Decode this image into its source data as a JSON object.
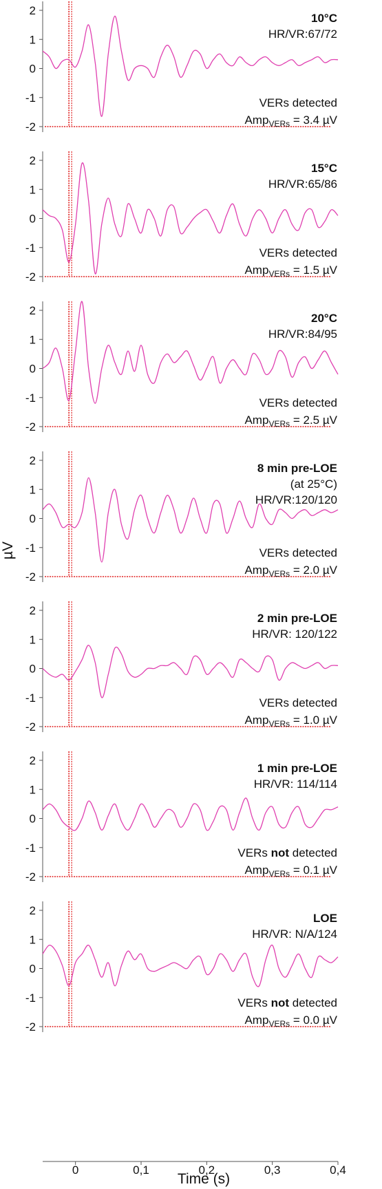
{
  "figure": {
    "ylabel": "µV",
    "xlabel": "Time (s)",
    "x_ticks": [
      "0",
      "0,1",
      "0,2",
      "0,3",
      "0,4"
    ],
    "y_ticks": [
      "2",
      "1",
      "0",
      "-1",
      "-2"
    ],
    "colors": {
      "trace": "#e040b0",
      "stimulus": "#e02020",
      "axis": "#555555",
      "text": "#111111"
    }
  },
  "chart_data": [
    {
      "type": "line",
      "title": "10°C",
      "annotations": {
        "lines": [
          {
            "segments": [
              {
                "text": "10°C",
                "bold": true
              }
            ]
          },
          {
            "segments": [
              {
                "text": "HR/VR:67/72"
              }
            ]
          }
        ],
        "detection": [
          {
            "text": "VERs"
          },
          {
            "text": " detected"
          }
        ],
        "amp": {
          "prefix": "Amp",
          "sub": "VERs",
          "value": " = 3.4 µV"
        }
      },
      "xlim": [
        -0.05,
        0.4
      ],
      "ylim": [
        -2,
        2
      ],
      "stimulus": {
        "x": -0.01,
        "level": -2
      },
      "series": [
        {
          "x": [
            -0.05,
            -0.04,
            -0.03,
            -0.02,
            -0.01,
            0.0,
            0.01,
            0.02,
            0.03,
            0.04,
            0.05,
            0.06,
            0.07,
            0.08,
            0.09,
            0.1,
            0.11,
            0.12,
            0.13,
            0.14,
            0.15,
            0.16,
            0.17,
            0.18,
            0.19,
            0.2,
            0.21,
            0.22,
            0.23,
            0.24,
            0.25,
            0.26,
            0.27,
            0.28,
            0.29,
            0.3,
            0.31,
            0.32,
            0.33,
            0.34,
            0.35,
            0.36,
            0.37,
            0.38,
            0.39,
            0.4
          ],
          "values": [
            0.6,
            0.4,
            0.0,
            0.25,
            0.3,
            0.05,
            0.6,
            1.5,
            0.2,
            -1.65,
            0.5,
            1.8,
            0.6,
            -0.4,
            0.0,
            0.1,
            0.0,
            -0.3,
            0.4,
            0.8,
            0.4,
            -0.3,
            0.1,
            0.6,
            0.5,
            0.0,
            0.3,
            0.5,
            0.2,
            0.1,
            0.4,
            0.2,
            0.1,
            0.3,
            0.4,
            0.2,
            0.1,
            0.2,
            0.3,
            0.1,
            0.2,
            0.3,
            0.4,
            0.2,
            0.3,
            0.3
          ]
        }
      ]
    },
    {
      "type": "line",
      "title": "15°C",
      "annotations": {
        "lines": [
          {
            "segments": [
              {
                "text": "15°C",
                "bold": true
              }
            ]
          },
          {
            "segments": [
              {
                "text": "HR/VR:65/86"
              }
            ]
          }
        ],
        "detection": [
          {
            "text": "VERs"
          },
          {
            "text": " detected"
          }
        ],
        "amp": {
          "prefix": "Amp",
          "sub": "VERs",
          "value": " = 1.5 µV"
        }
      },
      "xlim": [
        -0.05,
        0.4
      ],
      "ylim": [
        -2,
        2
      ],
      "stimulus": {
        "x": -0.01,
        "level": -2
      },
      "series": [
        {
          "x": [
            -0.05,
            -0.04,
            -0.03,
            -0.02,
            -0.01,
            0.0,
            0.01,
            0.02,
            0.03,
            0.04,
            0.05,
            0.06,
            0.07,
            0.08,
            0.09,
            0.1,
            0.11,
            0.12,
            0.13,
            0.14,
            0.15,
            0.16,
            0.17,
            0.18,
            0.19,
            0.2,
            0.21,
            0.22,
            0.23,
            0.24,
            0.25,
            0.26,
            0.27,
            0.28,
            0.29,
            0.3,
            0.31,
            0.32,
            0.33,
            0.34,
            0.35,
            0.36,
            0.37,
            0.38,
            0.39,
            0.4
          ],
          "values": [
            0.3,
            0.1,
            0.0,
            -0.4,
            -1.5,
            -0.2,
            1.9,
            0.6,
            -1.9,
            -0.2,
            0.7,
            -0.2,
            -0.6,
            0.5,
            0.0,
            -0.5,
            0.3,
            0.0,
            -0.6,
            0.3,
            0.4,
            -0.5,
            -0.3,
            0.0,
            0.2,
            0.3,
            -0.1,
            -0.5,
            0.1,
            0.5,
            -0.2,
            -0.6,
            0.0,
            0.3,
            0.0,
            -0.5,
            0.0,
            0.3,
            -0.2,
            -0.4,
            0.2,
            0.3,
            -0.3,
            -0.1,
            0.3,
            0.1
          ]
        }
      ]
    },
    {
      "type": "line",
      "title": "20°C",
      "annotations": {
        "lines": [
          {
            "segments": [
              {
                "text": "20°C",
                "bold": true
              }
            ]
          },
          {
            "segments": [
              {
                "text": "HR/VR:84/95"
              }
            ]
          }
        ],
        "detection": [
          {
            "text": "VERs"
          },
          {
            "text": " detected"
          }
        ],
        "amp": {
          "prefix": "Amp",
          "sub": "VERs",
          "value": " = 2.5 µV"
        }
      },
      "xlim": [
        -0.05,
        0.4
      ],
      "ylim": [
        -2,
        2
      ],
      "stimulus": {
        "x": -0.01,
        "level": -2
      },
      "series": [
        {
          "x": [
            -0.05,
            -0.04,
            -0.03,
            -0.02,
            -0.01,
            0.0,
            0.01,
            0.02,
            0.03,
            0.04,
            0.05,
            0.06,
            0.07,
            0.08,
            0.09,
            0.1,
            0.11,
            0.12,
            0.13,
            0.14,
            0.15,
            0.16,
            0.17,
            0.18,
            0.19,
            0.2,
            0.21,
            0.22,
            0.23,
            0.24,
            0.25,
            0.26,
            0.27,
            0.28,
            0.29,
            0.3,
            0.31,
            0.32,
            0.33,
            0.34,
            0.35,
            0.36,
            0.37,
            0.38,
            0.39,
            0.4
          ],
          "values": [
            0.0,
            0.2,
            0.7,
            0.0,
            -1.1,
            0.6,
            2.3,
            0.0,
            -1.2,
            0.0,
            0.8,
            0.2,
            -0.2,
            0.6,
            -0.1,
            0.8,
            -0.2,
            -0.5,
            0.2,
            0.5,
            0.2,
            0.4,
            0.6,
            0.1,
            -0.4,
            0.0,
            0.4,
            -0.5,
            0.0,
            0.3,
            0.0,
            -0.2,
            0.5,
            0.3,
            -0.2,
            0.0,
            0.6,
            0.4,
            -0.3,
            0.2,
            0.4,
            0.0,
            0.3,
            0.6,
            0.2,
            -0.2
          ]
        }
      ]
    },
    {
      "type": "line",
      "title": "8 min pre-LOE",
      "annotations": {
        "lines": [
          {
            "segments": [
              {
                "text": "8 min pre-LOE",
                "bold": true
              }
            ]
          },
          {
            "segments": [
              {
                "text": "(at 25°C)"
              }
            ]
          },
          {
            "segments": [
              {
                "text": "HR/VR:120/120"
              }
            ]
          }
        ],
        "detection": [
          {
            "text": "VERs"
          },
          {
            "text": " detected"
          }
        ],
        "amp": {
          "prefix": "Amp",
          "sub": "VERs",
          "value": " = 2.0 µV"
        }
      },
      "xlim": [
        -0.05,
        0.4
      ],
      "ylim": [
        -2,
        2
      ],
      "stimulus": {
        "x": -0.01,
        "level": -2
      },
      "series": [
        {
          "x": [
            -0.05,
            -0.04,
            -0.03,
            -0.02,
            -0.01,
            0.0,
            0.01,
            0.02,
            0.03,
            0.04,
            0.05,
            0.06,
            0.07,
            0.08,
            0.09,
            0.1,
            0.11,
            0.12,
            0.13,
            0.14,
            0.15,
            0.16,
            0.17,
            0.18,
            0.19,
            0.2,
            0.21,
            0.22,
            0.23,
            0.24,
            0.25,
            0.26,
            0.27,
            0.28,
            0.29,
            0.3,
            0.31,
            0.32,
            0.33,
            0.34,
            0.35,
            0.36,
            0.37,
            0.38,
            0.39,
            0.4
          ],
          "values": [
            0.3,
            0.5,
            0.2,
            -0.3,
            -0.2,
            -0.3,
            0.2,
            1.4,
            0.2,
            -1.5,
            0.2,
            1.0,
            -0.2,
            -0.7,
            0.3,
            0.8,
            0.0,
            -0.5,
            0.2,
            0.8,
            0.3,
            -0.5,
            0.0,
            0.7,
            0.0,
            -0.5,
            0.5,
            0.5,
            -0.5,
            0.0,
            0.6,
            0.0,
            -0.3,
            0.5,
            0.0,
            -0.2,
            0.3,
            0.2,
            0.0,
            0.2,
            0.3,
            0.1,
            0.2,
            0.3,
            0.2,
            0.3
          ]
        }
      ]
    },
    {
      "type": "line",
      "title": "2 min pre-LOE",
      "annotations": {
        "lines": [
          {
            "segments": [
              {
                "text": "2 min pre-LOE",
                "bold": true
              }
            ]
          },
          {
            "segments": [
              {
                "text": "HR/VR: 120/122"
              }
            ]
          }
        ],
        "detection": [
          {
            "text": "VERs"
          },
          {
            "text": " detected"
          }
        ],
        "amp": {
          "prefix": "Amp",
          "sub": "VERs",
          "value": " = 1.0 µV"
        }
      },
      "xlim": [
        -0.05,
        0.4
      ],
      "ylim": [
        -2,
        2
      ],
      "stimulus": {
        "x": -0.01,
        "level": -2
      },
      "series": [
        {
          "x": [
            -0.05,
            -0.04,
            -0.03,
            -0.02,
            -0.01,
            0.0,
            0.01,
            0.02,
            0.03,
            0.04,
            0.05,
            0.06,
            0.07,
            0.08,
            0.09,
            0.1,
            0.11,
            0.12,
            0.13,
            0.14,
            0.15,
            0.16,
            0.17,
            0.18,
            0.19,
            0.2,
            0.21,
            0.22,
            0.23,
            0.24,
            0.25,
            0.26,
            0.27,
            0.28,
            0.29,
            0.3,
            0.31,
            0.32,
            0.33,
            0.34,
            0.35,
            0.36,
            0.37,
            0.38,
            0.39,
            0.4
          ],
          "values": [
            0.0,
            -0.2,
            -0.3,
            -0.2,
            -0.4,
            -0.1,
            0.3,
            0.8,
            0.2,
            -1.0,
            -0.2,
            0.7,
            0.5,
            -0.1,
            -0.3,
            -0.2,
            0.0,
            0.0,
            0.1,
            0.1,
            0.2,
            0.0,
            -0.2,
            0.4,
            0.3,
            -0.2,
            0.0,
            0.2,
            0.0,
            -0.3,
            0.3,
            0.2,
            0.0,
            -0.1,
            0.4,
            0.3,
            -0.4,
            0.0,
            0.2,
            0.1,
            0.0,
            0.1,
            0.2,
            0.0,
            0.1,
            0.1
          ]
        }
      ]
    },
    {
      "type": "line",
      "title": "1 min pre-LOE",
      "annotations": {
        "lines": [
          {
            "segments": [
              {
                "text": "1 min pre-LOE",
                "bold": true
              }
            ]
          },
          {
            "segments": [
              {
                "text": "HR/VR: 114/114"
              }
            ]
          }
        ],
        "detection": [
          {
            "text": "VERs "
          },
          {
            "text": "not",
            "bold": true
          },
          {
            "text": " detected"
          }
        ],
        "amp": {
          "prefix": "Amp",
          "sub": "VERs",
          "value": " = 0.1 µV"
        }
      },
      "xlim": [
        -0.05,
        0.4
      ],
      "ylim": [
        -2,
        2
      ],
      "stimulus": {
        "x": -0.01,
        "level": -2
      },
      "series": [
        {
          "x": [
            -0.05,
            -0.04,
            -0.03,
            -0.02,
            -0.01,
            0.0,
            0.01,
            0.02,
            0.03,
            0.04,
            0.05,
            0.06,
            0.07,
            0.08,
            0.09,
            0.1,
            0.11,
            0.12,
            0.13,
            0.14,
            0.15,
            0.16,
            0.17,
            0.18,
            0.19,
            0.2,
            0.21,
            0.22,
            0.23,
            0.24,
            0.25,
            0.26,
            0.27,
            0.28,
            0.29,
            0.3,
            0.31,
            0.32,
            0.33,
            0.34,
            0.35,
            0.36,
            0.37,
            0.38,
            0.39,
            0.4
          ],
          "values": [
            0.3,
            0.5,
            0.3,
            -0.1,
            -0.3,
            -0.4,
            0.0,
            0.6,
            0.2,
            -0.4,
            0.1,
            0.5,
            -0.1,
            -0.4,
            0.0,
            0.5,
            0.2,
            -0.3,
            0.0,
            0.3,
            0.2,
            -0.3,
            0.0,
            0.5,
            0.3,
            -0.4,
            -0.1,
            0.4,
            0.3,
            -0.4,
            0.2,
            0.7,
            0.0,
            -0.4,
            0.2,
            0.4,
            -0.2,
            -0.3,
            0.2,
            0.4,
            -0.2,
            -0.3,
            0.0,
            0.3,
            0.3,
            0.4
          ]
        }
      ]
    },
    {
      "type": "line",
      "title": "LOE",
      "annotations": {
        "lines": [
          {
            "segments": [
              {
                "text": "LOE",
                "bold": true
              }
            ]
          },
          {
            "segments": [
              {
                "text": "HR/VR: N/A/124"
              }
            ]
          }
        ],
        "detection": [
          {
            "text": "VERs "
          },
          {
            "text": "not",
            "bold": true
          },
          {
            "text": " detected"
          }
        ],
        "amp": {
          "prefix": "Amp",
          "sub": "VERs",
          "value": " = 0.0 µV"
        }
      },
      "xlim": [
        -0.05,
        0.4
      ],
      "ylim": [
        -2,
        2
      ],
      "stimulus": {
        "x": -0.01,
        "level": -2
      },
      "series": [
        {
          "x": [
            -0.05,
            -0.04,
            -0.03,
            -0.02,
            -0.01,
            0.0,
            0.01,
            0.02,
            0.03,
            0.04,
            0.05,
            0.06,
            0.07,
            0.08,
            0.09,
            0.1,
            0.11,
            0.12,
            0.13,
            0.14,
            0.15,
            0.16,
            0.17,
            0.18,
            0.19,
            0.2,
            0.21,
            0.22,
            0.23,
            0.24,
            0.25,
            0.26,
            0.27,
            0.28,
            0.29,
            0.3,
            0.31,
            0.32,
            0.33,
            0.34,
            0.35,
            0.36,
            0.37,
            0.38,
            0.39,
            0.4
          ],
          "values": [
            0.5,
            0.8,
            0.6,
            0.1,
            -0.6,
            0.2,
            0.5,
            0.8,
            0.3,
            -0.3,
            0.2,
            -0.6,
            0.1,
            0.6,
            0.3,
            0.5,
            0.0,
            -0.1,
            0.0,
            0.1,
            0.2,
            0.1,
            0.0,
            0.3,
            0.4,
            -0.2,
            0.0,
            0.5,
            0.3,
            -0.1,
            0.3,
            0.5,
            -0.3,
            -0.6,
            0.3,
            0.8,
            0.0,
            -0.3,
            0.1,
            0.5,
            0.0,
            -0.3,
            0.4,
            0.3,
            0.2,
            0.4
          ]
        }
      ]
    }
  ]
}
